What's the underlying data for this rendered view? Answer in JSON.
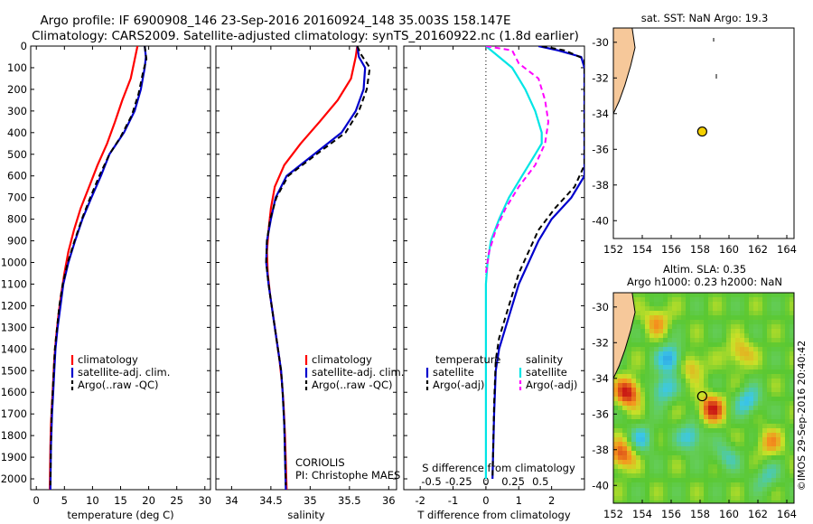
{
  "header": {
    "line1": "Argo profile: IF 6900908_146 23-Sep-2016 20160924_148 35.003S 158.147E",
    "line2": "Climatology: CARS2009. Satellite-adjusted climatology: synTS_20160922.nc (1.8d earlier)"
  },
  "credits": {
    "center": "CORIOLIS",
    "pi": "PI: Christophe MAES",
    "imos": "©IMOS 29-Sep-2016 20:40:42"
  },
  "colors": {
    "climatology": "#ff0000",
    "satellite": "#0000cc",
    "argo": "#000000",
    "satellite_salinity": "#00e5e5",
    "argo_salinity": "#ff00ff",
    "land": "#f6c89a"
  },
  "chart_data": [
    {
      "id": "temperature",
      "type": "line",
      "xlabel": "temperature (deg C)",
      "ylabel": "",
      "xlim": [
        -1,
        31
      ],
      "ylim": [
        2050,
        0
      ],
      "xticks": [
        0,
        5,
        10,
        15,
        20,
        25,
        30
      ],
      "yticks": [
        0,
        100,
        200,
        300,
        400,
        500,
        600,
        700,
        800,
        900,
        1000,
        1100,
        1200,
        1300,
        1400,
        1500,
        1600,
        1700,
        1800,
        1900,
        2000
      ],
      "legend": [
        "climatology",
        "satellite-adj. clim.",
        "Argo(..raw -QC)"
      ],
      "series": [
        {
          "name": "climatology",
          "color": "#ff0000",
          "dash": false,
          "x": [
            18.0,
            17.6,
            16.8,
            15.3,
            14.0,
            12.6,
            10.9,
            9.4,
            7.9,
            6.7,
            5.7,
            5.0,
            4.4,
            3.9,
            3.5,
            3.2,
            3.0,
            2.8,
            2.6,
            2.5,
            2.4
          ],
          "y": [
            0,
            50,
            150,
            250,
            350,
            450,
            550,
            650,
            750,
            850,
            950,
            1050,
            1150,
            1250,
            1350,
            1450,
            1550,
            1650,
            1750,
            1850,
            2050
          ]
        },
        {
          "name": "satellite-adj. clim.",
          "color": "#0000cc",
          "dash": false,
          "x": [
            19.3,
            19.5,
            19.3,
            18.6,
            17.5,
            15.6,
            13.0,
            11.5,
            9.8,
            8.2,
            6.9,
            5.7,
            4.8,
            4.3,
            3.8,
            3.4,
            3.2,
            3.0,
            2.8,
            2.6,
            2.5
          ],
          "y": [
            0,
            50,
            100,
            200,
            300,
            400,
            500,
            600,
            700,
            800,
            900,
            1000,
            1100,
            1200,
            1300,
            1400,
            1500,
            1600,
            1700,
            1850,
            2050
          ]
        },
        {
          "name": "Argo(..raw -QC)",
          "color": "#000000",
          "dash": true,
          "x": [
            19.3,
            19.6,
            19.0,
            18.2,
            17.0,
            15.0,
            13.0,
            11.2,
            9.6,
            8.1,
            6.8,
            5.6,
            4.7,
            4.1,
            3.7,
            3.3,
            3.1,
            2.9,
            2.7,
            2.6,
            2.5
          ],
          "y": [
            0,
            60,
            120,
            220,
            320,
            420,
            500,
            600,
            700,
            800,
            900,
            1000,
            1100,
            1200,
            1300,
            1400,
            1500,
            1600,
            1700,
            1850,
            2030
          ]
        }
      ]
    },
    {
      "id": "salinity",
      "type": "line",
      "xlabel": "salinity",
      "ylabel": "",
      "xlim": [
        33.8,
        36.1
      ],
      "ylim": [
        2050,
        0
      ],
      "xticks": [
        34,
        34.5,
        35,
        35.5,
        36
      ],
      "legend": [
        "climatology",
        "satellite-adj. clim.",
        "Argo(..raw -QC)"
      ],
      "series": [
        {
          "name": "climatology",
          "color": "#ff0000",
          "dash": false,
          "x": [
            35.6,
            35.58,
            35.52,
            35.35,
            35.12,
            34.88,
            34.67,
            34.55,
            34.5,
            34.47,
            34.45,
            34.46,
            34.49,
            34.53,
            34.57,
            34.61,
            34.64,
            34.66,
            34.68,
            34.7
          ],
          "y": [
            0,
            50,
            150,
            250,
            350,
            450,
            550,
            650,
            750,
            850,
            950,
            1050,
            1150,
            1250,
            1350,
            1450,
            1550,
            1650,
            1800,
            2050
          ]
        },
        {
          "name": "satellite-adj. clim.",
          "color": "#0000cc",
          "dash": false,
          "x": [
            35.6,
            35.62,
            35.7,
            35.68,
            35.58,
            35.4,
            35.05,
            34.7,
            34.56,
            34.5,
            34.45,
            34.44,
            34.47,
            34.51,
            34.55,
            34.59,
            34.63,
            34.65,
            34.67,
            34.69
          ],
          "y": [
            0,
            50,
            100,
            200,
            300,
            400,
            500,
            600,
            700,
            800,
            900,
            1000,
            1100,
            1200,
            1300,
            1400,
            1500,
            1600,
            1750,
            2050
          ]
        },
        {
          "name": "Argo(..raw -QC)",
          "color": "#000000",
          "dash": true,
          "x": [
            35.6,
            35.65,
            35.76,
            35.72,
            35.62,
            35.45,
            35.08,
            34.72,
            34.57,
            34.49,
            34.45,
            34.44,
            34.47,
            34.51,
            34.55,
            34.59,
            34.63,
            34.65,
            34.67,
            34.69
          ],
          "y": [
            0,
            40,
            100,
            200,
            300,
            400,
            500,
            600,
            700,
            800,
            900,
            1000,
            1100,
            1200,
            1300,
            1400,
            1500,
            1600,
            1750,
            2030
          ]
        }
      ]
    },
    {
      "id": "difference",
      "type": "line",
      "xlabel": "T difference from climatology",
      "ylabel": "",
      "top_axis_label": "S difference from climatology",
      "xlim": [
        -2.5,
        3.0
      ],
      "ylim": [
        2050,
        0
      ],
      "xticks": [
        -2,
        -1,
        0,
        1,
        2
      ],
      "top_xticks": [
        {
          "v": -1.66,
          "label": "-0.5"
        },
        {
          "v": -0.83,
          "label": "-0.25"
        },
        {
          "v": 0,
          "label": "0"
        },
        {
          "v": 0.83,
          "label": "0.25"
        },
        {
          "v": 1.66,
          "label": "0.5"
        }
      ],
      "zero_line": 0,
      "legend_temperature_title": "temperature",
      "legend_salinity_title": "salinity",
      "legend_temperature": [
        "satellite",
        "Argo(-adj)"
      ],
      "legend_salinity": [
        "satellite",
        "Argo(-adj)"
      ],
      "series": [
        {
          "name": "temperature satellite",
          "color": "#0000cc",
          "dash": false,
          "x": [
            1.6,
            2.2,
            2.9,
            3.0,
            3.0,
            3.0,
            3.0,
            3.0,
            2.6,
            2.0,
            1.6,
            1.3,
            1.0,
            0.8,
            0.6,
            0.4,
            0.3,
            0.25,
            0.2
          ],
          "y": [
            0,
            20,
            50,
            100,
            250,
            400,
            500,
            600,
            700,
            800,
            900,
            1000,
            1100,
            1200,
            1300,
            1400,
            1500,
            1700,
            2000
          ]
        },
        {
          "name": "temperature Argo(-adj)",
          "color": "#000000",
          "dash": true,
          "x": [
            1.7,
            2.4,
            3.0,
            3.0,
            3.0,
            3.0,
            3.0,
            2.7,
            2.1,
            1.6,
            1.3,
            1.0,
            0.8,
            0.6,
            0.4,
            0.3,
            0.25,
            0.2
          ],
          "y": [
            0,
            20,
            60,
            150,
            300,
            450,
            550,
            650,
            750,
            850,
            950,
            1050,
            1150,
            1250,
            1350,
            1450,
            1650,
            2000
          ]
        },
        {
          "name": "salinity satellite",
          "color": "#00e5e5",
          "dash": false,
          "x": [
            0.0,
            0.4,
            0.8,
            1.0,
            1.2,
            1.5,
            1.7,
            1.7,
            1.5,
            1.1,
            0.7,
            0.4,
            0.15,
            0.05,
            0.0,
            0.0,
            0.0,
            0.0
          ],
          "y": [
            0,
            50,
            100,
            150,
            200,
            300,
            400,
            450,
            500,
            600,
            700,
            800,
            900,
            1000,
            1100,
            1300,
            1600,
            2000
          ]
        },
        {
          "name": "salinity Argo(-adj)",
          "color": "#ff00ff",
          "dash": true,
          "x": [
            0.0,
            0.8,
            1.0,
            1.6,
            1.8,
            1.9,
            1.8,
            1.5,
            1.0,
            0.6,
            0.3,
            0.1,
            0.0
          ],
          "y": [
            0,
            20,
            80,
            150,
            250,
            350,
            450,
            550,
            650,
            750,
            850,
            950,
            1050
          ]
        }
      ]
    },
    {
      "id": "sst_map",
      "type": "scatter",
      "title": "sat. SST: NaN Argo: 19.3",
      "xlabel": "",
      "ylabel": "",
      "xlim": [
        152,
        164.5
      ],
      "ylim": [
        -41,
        -29.2
      ],
      "xticks": [
        152,
        154,
        156,
        158,
        160,
        162,
        164
      ],
      "yticks": [
        -30,
        -32,
        -34,
        -36,
        -38,
        -40
      ],
      "profile_location": {
        "lon": 158.147,
        "lat": -35.003
      },
      "coast": {
        "lon": [
          152,
          153.3,
          153.5,
          153.2,
          152.8,
          152.4,
          152
        ],
        "lat": [
          -29.2,
          -29.2,
          -30.3,
          -31.3,
          -32.4,
          -33.3,
          -34.0
        ]
      }
    },
    {
      "id": "sla_map",
      "type": "heatmap",
      "title_line1": "Altim. SLA: 0.35",
      "title_line2": "Argo h1000: 0.23 h2000: NaN",
      "xlabel": "",
      "ylabel": "",
      "xlim": [
        152,
        164.5
      ],
      "ylim": [
        -41,
        -29.2
      ],
      "xticks": [
        152,
        154,
        156,
        158,
        160,
        162,
        164
      ],
      "yticks": [
        -30,
        -32,
        -34,
        -36,
        -38,
        -40
      ],
      "profile_location": {
        "lon": 158.147,
        "lat": -35.003
      },
      "anomalies": [
        {
          "lon": 153.0,
          "lat": -34.8,
          "strength": 1.0
        },
        {
          "lon": 158.8,
          "lat": -35.7,
          "strength": 0.9
        },
        {
          "lon": 152.6,
          "lat": -38.3,
          "strength": 0.8
        },
        {
          "lon": 157.4,
          "lat": -33.3,
          "strength": 0.5
        },
        {
          "lon": 160.8,
          "lat": -32.6,
          "strength": 0.5
        },
        {
          "lon": 162.8,
          "lat": -37.6,
          "strength": 0.5
        },
        {
          "lon": 155.0,
          "lat": -30.8,
          "strength": 0.5
        },
        {
          "lon": 156.0,
          "lat": -32.9,
          "strength": -0.8
        },
        {
          "lon": 155.4,
          "lat": -34.6,
          "strength": -0.6
        },
        {
          "lon": 157.4,
          "lat": -37.3,
          "strength": -0.6
        },
        {
          "lon": 154.0,
          "lat": -37.4,
          "strength": -0.5
        },
        {
          "lon": 161.3,
          "lat": -35.3,
          "strength": -0.6
        },
        {
          "lon": 162.6,
          "lat": -39.5,
          "strength": -0.4
        },
        {
          "lon": 159.8,
          "lat": -38.4,
          "strength": -0.4
        }
      ]
    }
  ]
}
